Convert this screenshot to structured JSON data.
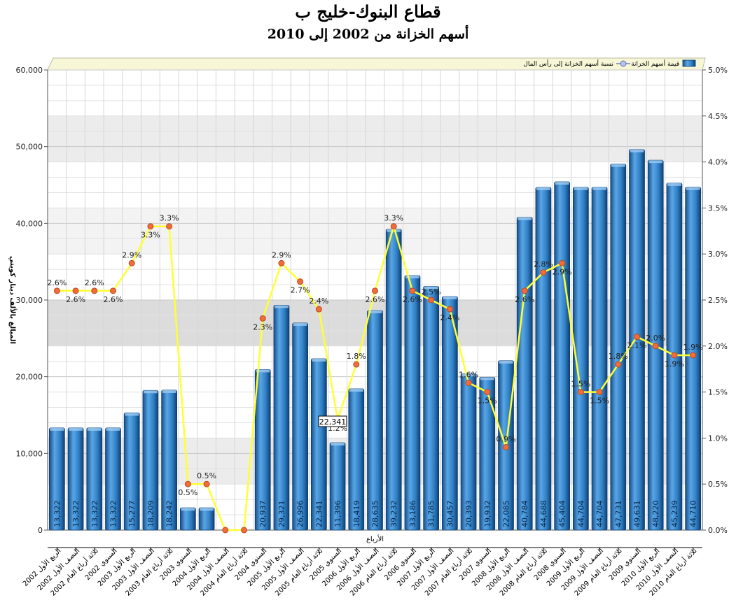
{
  "title": "قطاع البنوك-خليج ب",
  "subtitle": "أسهم الخزانة من 2002 إلى 2010",
  "chart_data": {
    "type": "bar",
    "title": "قطاع البنوك-خليج ب",
    "subtitle": "أسهم الخزانة من 2002 إلى 2010",
    "xlabel": "الأرباع",
    "ylabel": "المبالغ بالألف دينار كويتي",
    "ylim": [
      0,
      60000
    ],
    "y_ticks": [
      "0",
      "10,000",
      "20,000",
      "30,000",
      "40,000",
      "50,000",
      "60,000"
    ],
    "y2lim": [
      0,
      5
    ],
    "y2_ticks": [
      "0.0%",
      "0.5%",
      "1.0%",
      "1.5%",
      "2.0%",
      "2.5%",
      "3.0%",
      "3.5%",
      "4.0%",
      "4.5%",
      "5.0%"
    ],
    "legend_position": "top",
    "legend": [
      "قيمة أسهم الخزانة",
      "نسبة أسهم الخزانة إلى رأس المال"
    ],
    "categories": [
      "الربع الأول 2002",
      "النصف الأول 2002",
      "ثلاثة أرباع العام 2002",
      "السنوي 2002",
      "الربع الأول 2003",
      "النصف الأول 2003",
      "ثلاثة أرباع العام 2003",
      "السنوي 2003",
      "الربع الأول 2004",
      "النصف الأول 2004",
      "ثلاثة أرباع العام 2004",
      "السنوي 2004",
      "الربع الأول 2005",
      "النصف الأول 2005",
      "ثلاثة أرباع العام 2005",
      "السنوي 2005",
      "الربع الأول 2006",
      "النصف الأول 2006",
      "ثلاثة أرباع العام 2006",
      "السنوي 2006",
      "الربع الأول 2007",
      "النصف الأول 2007",
      "ثلاثة أرباع العام 2007",
      "السنوي 2007",
      "الربع الأول 2008",
      "النصف الأول 2008",
      "ثلاثة أرباع العام 2008",
      "السنوي 2008",
      "الربع الأول 2009",
      "النصف الأول 2009",
      "ثلاثة أرباع العام 2009",
      "السنوي 2009",
      "الربع الأول 2010",
      "النصف الأول 2010",
      "ثلاثة أرباع العام 2010"
    ],
    "series": [
      {
        "name": "قيمة أسهم الخزانة",
        "axis": "left",
        "color": "#2f7fc4",
        "values": [
          13322,
          13322,
          13322,
          13322,
          15277,
          18209,
          18242,
          2900,
          2900,
          0,
          0,
          20937,
          29321,
          26996,
          22341,
          11396,
          18419,
          28635,
          39232,
          33186,
          31785,
          30457,
          20393,
          19932,
          22085,
          40784,
          44688,
          45404,
          44704,
          44704,
          47731,
          49631,
          48220,
          45239,
          44710
        ],
        "labels": [
          "13,322",
          "13,322",
          "13,322",
          "13,322",
          "15,277",
          "18,209",
          "18,242",
          "",
          "",
          "",
          "",
          "20,937",
          "29,321",
          "26,996",
          "22,341",
          "11,396",
          "18,419",
          "28,635",
          "39,232",
          "33,186",
          "31,785",
          "30,457",
          "20,393",
          "19,932",
          "22,085",
          "40,784",
          "44,688",
          "45,404",
          "44,704",
          "44,704",
          "47,731",
          "49,631",
          "48,220",
          "45,239",
          "44,710"
        ]
      },
      {
        "name": "نسبة أسهم الخزانة إلى رأس المال",
        "axis": "right",
        "color": "#ffff33",
        "values": [
          2.6,
          2.6,
          2.6,
          2.6,
          2.9,
          3.3,
          3.3,
          0.5,
          0.5,
          0,
          0,
          2.3,
          2.9,
          2.7,
          2.4,
          1.2,
          1.8,
          2.6,
          3.3,
          2.6,
          2.5,
          2.4,
          1.6,
          1.5,
          0.9,
          2.6,
          2.8,
          2.9,
          1.5,
          1.5,
          1.8,
          2.1,
          2.0,
          1.9,
          1.9
        ],
        "labels": [
          "2.6%",
          "2.6%",
          "2.6%",
          "2.6%",
          "2.9%",
          "3.3%",
          "3.3%",
          "0.5%",
          "0.5%",
          "",
          "",
          "2.3%",
          "2.9%",
          "2.7%",
          "2.4%",
          "1.2%",
          "1.8%",
          "2.6%",
          "3.3%",
          "2.6%",
          "2.5%",
          "2.4%",
          "1.6%",
          "1.5%",
          "0.9%",
          "2.6%",
          "2.8%",
          "2.9%",
          "1.5%",
          "1.5%",
          "1.8%",
          "2.1%",
          "2.0%",
          "1.9%",
          "1.9%"
        ]
      }
    ],
    "tooltip": "22,341"
  }
}
